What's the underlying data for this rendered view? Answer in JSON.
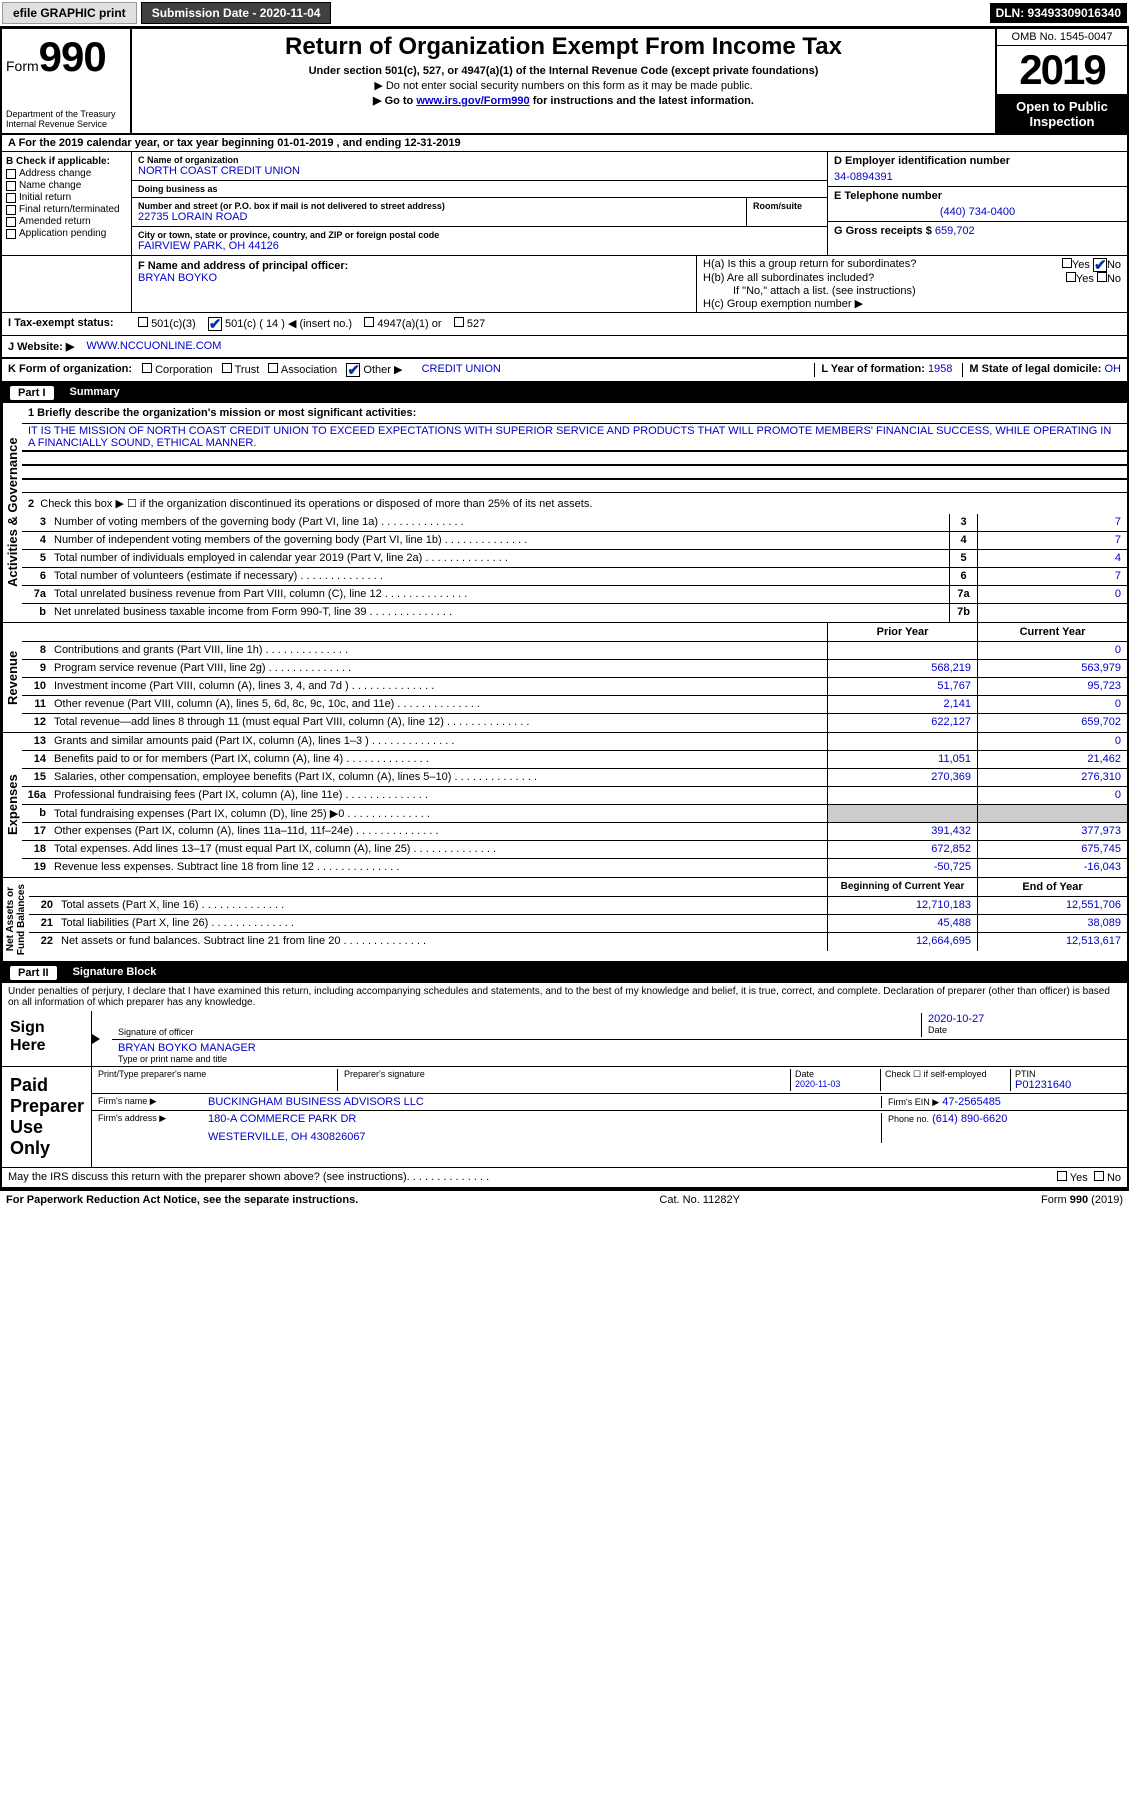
{
  "topbar": {
    "efile": "efile GRAPHIC print",
    "subdate_label": "Submission Date - ",
    "subdate": "2020-11-04",
    "dln": "DLN: 93493309016340"
  },
  "header": {
    "form_word": "Form",
    "form_num": "990",
    "dept1": "Department of the Treasury",
    "dept2": "Internal Revenue Service",
    "title": "Return of Organization Exempt From Income Tax",
    "sub1": "Under section 501(c), 527, or 4947(a)(1) of the Internal Revenue Code (except private foundations)",
    "sub2": "▶ Do not enter social security numbers on this form as it may be made public.",
    "sub3a": "▶ Go to ",
    "sub3_link": "www.irs.gov/Form990",
    "sub3b": " for instructions and the latest information.",
    "omb": "OMB No. 1545-0047",
    "year": "2019",
    "open": "Open to Public Inspection"
  },
  "lineA": "A For the 2019 calendar year, or tax year beginning 01-01-2019   , and ending 12-31-2019",
  "colB": {
    "hdr": "B Check if applicable:",
    "items": [
      "Address change",
      "Name change",
      "Initial return",
      "Final return/terminated",
      "Amended return",
      "Application pending"
    ]
  },
  "colC": {
    "name_lbl": "C Name of organization",
    "name": "NORTH COAST CREDIT UNION",
    "dba_lbl": "Doing business as",
    "dba": "",
    "addr_lbl": "Number and street (or P.O. box if mail is not delivered to street address)",
    "room_lbl": "Room/suite",
    "addr": "22735 LORAIN ROAD",
    "city_lbl": "City or town, state or province, country, and ZIP or foreign postal code",
    "city": "FAIRVIEW PARK, OH  44126",
    "f_lbl": "F  Name and address of principal officer:",
    "f_name": "BRYAN BOYKO"
  },
  "colD": {
    "ein_lbl": "D Employer identification number",
    "ein": "34-0894391",
    "tel_lbl": "E Telephone number",
    "tel": "(440) 734-0400",
    "g_lbl": "G Gross receipts $ ",
    "g_val": "659,702"
  },
  "colH": {
    "a": "H(a)  Is this a group return for subordinates?",
    "b": "H(b)  Are all subordinates included?",
    "note": "If \"No,\" attach a list. (see instructions)",
    "c": "H(c)  Group exemption number ▶",
    "yes": "Yes",
    "no": "No"
  },
  "rowI": {
    "lbl": "I  Tax-exempt status:",
    "opts": [
      "501(c)(3)",
      "501(c) ( 14 ) ◀ (insert no.)",
      "4947(a)(1) or",
      "527"
    ]
  },
  "rowJ": {
    "lbl": "J  Website: ▶",
    "val": "WWW.NCCUONLINE.COM"
  },
  "rowK": {
    "lbl": "K Form of organization:",
    "opts": [
      "Corporation",
      "Trust",
      "Association",
      "Other ▶"
    ],
    "other": "CREDIT UNION",
    "l_lbl": "L Year of formation: ",
    "l_val": "1958",
    "m_lbl": "M State of legal domicile: ",
    "m_val": "OH"
  },
  "part1": {
    "num": "Part I",
    "title": "Summary"
  },
  "summary": {
    "q1_lbl": "1  Briefly describe the organization's mission or most significant activities:",
    "q1_text": "IT IS THE MISSION OF NORTH COAST CREDIT UNION TO EXCEED EXPECTATIONS WITH SUPERIOR SERVICE AND PRODUCTS THAT WILL PROMOTE MEMBERS' FINANCIAL SUCCESS, WHILE OPERATING IN A FINANCIALLY SOUND, ETHICAL MANNER.",
    "q2": "Check this box ▶ ☐  if the organization discontinued its operations or disposed of more than 25% of its net assets.",
    "rows_gov": [
      {
        "n": "3",
        "t": "Number of voting members of the governing body (Part VI, line 1a)",
        "box": "3",
        "v": "7"
      },
      {
        "n": "4",
        "t": "Number of independent voting members of the governing body (Part VI, line 1b)",
        "box": "4",
        "v": "7"
      },
      {
        "n": "5",
        "t": "Total number of individuals employed in calendar year 2019 (Part V, line 2a)",
        "box": "5",
        "v": "4"
      },
      {
        "n": "6",
        "t": "Total number of volunteers (estimate if necessary)",
        "box": "6",
        "v": "7"
      },
      {
        "n": "7a",
        "t": "Total unrelated business revenue from Part VIII, column (C), line 12",
        "box": "7a",
        "v": "0"
      },
      {
        "n": "b",
        "t": "Net unrelated business taxable income from Form 990-T, line 39",
        "box": "7b",
        "v": ""
      }
    ],
    "col_py": "Prior Year",
    "col_cy": "Current Year",
    "rows_rev": [
      {
        "n": "8",
        "t": "Contributions and grants (Part VIII, line 1h)",
        "py": "",
        "cy": "0"
      },
      {
        "n": "9",
        "t": "Program service revenue (Part VIII, line 2g)",
        "py": "568,219",
        "cy": "563,979"
      },
      {
        "n": "10",
        "t": "Investment income (Part VIII, column (A), lines 3, 4, and 7d )",
        "py": "51,767",
        "cy": "95,723"
      },
      {
        "n": "11",
        "t": "Other revenue (Part VIII, column (A), lines 5, 6d, 8c, 9c, 10c, and 11e)",
        "py": "2,141",
        "cy": "0"
      },
      {
        "n": "12",
        "t": "Total revenue—add lines 8 through 11 (must equal Part VIII, column (A), line 12)",
        "py": "622,127",
        "cy": "659,702"
      }
    ],
    "rows_exp": [
      {
        "n": "13",
        "t": "Grants and similar amounts paid (Part IX, column (A), lines 1–3 )",
        "py": "",
        "cy": "0"
      },
      {
        "n": "14",
        "t": "Benefits paid to or for members (Part IX, column (A), line 4)",
        "py": "11,051",
        "cy": "21,462"
      },
      {
        "n": "15",
        "t": "Salaries, other compensation, employee benefits (Part IX, column (A), lines 5–10)",
        "py": "270,369",
        "cy": "276,310"
      },
      {
        "n": "16a",
        "t": "Professional fundraising fees (Part IX, column (A), line 11e)",
        "py": "",
        "cy": "0"
      },
      {
        "n": "b",
        "t": "Total fundraising expenses (Part IX, column (D), line 25) ▶0",
        "py": "SHADE",
        "cy": "SHADE"
      },
      {
        "n": "17",
        "t": "Other expenses (Part IX, column (A), lines 11a–11d, 11f–24e)",
        "py": "391,432",
        "cy": "377,973"
      },
      {
        "n": "18",
        "t": "Total expenses. Add lines 13–17 (must equal Part IX, column (A), line 25)",
        "py": "672,852",
        "cy": "675,745"
      },
      {
        "n": "19",
        "t": "Revenue less expenses. Subtract line 18 from line 12",
        "py": "-50,725",
        "cy": "-16,043"
      }
    ],
    "col_bcy": "Beginning of Current Year",
    "col_ey": "End of Year",
    "rows_net": [
      {
        "n": "20",
        "t": "Total assets (Part X, line 16)",
        "py": "12,710,183",
        "cy": "12,551,706"
      },
      {
        "n": "21",
        "t": "Total liabilities (Part X, line 26)",
        "py": "45,488",
        "cy": "38,089"
      },
      {
        "n": "22",
        "t": "Net assets or fund balances. Subtract line 21 from line 20",
        "py": "12,664,695",
        "cy": "12,513,617"
      }
    ]
  },
  "vtabs": {
    "gov": "Activities & Governance",
    "rev": "Revenue",
    "exp": "Expenses",
    "net": "Net Assets or\nFund Balances"
  },
  "part2": {
    "num": "Part II",
    "title": "Signature Block"
  },
  "sig": {
    "decl": "Under penalties of perjury, I declare that I have examined this return, including accompanying schedules and statements, and to the best of my knowledge and belief, it is true, correct, and complete. Declaration of preparer (other than officer) is based on all information of which preparer has any knowledge.",
    "sign_here": "Sign Here",
    "sig_officer": "Signature of officer",
    "date": "Date",
    "date_val": "2020-10-27",
    "name_title": "BRYAN BOYKO MANAGER",
    "type_name": "Type or print name and title",
    "paid": "Paid Preparer Use Only",
    "prep_name_lbl": "Print/Type preparer's name",
    "prep_sig_lbl": "Preparer's signature",
    "prep_date": "2020-11-03",
    "check_self": "Check ☐ if self-employed",
    "ptin_lbl": "PTIN",
    "ptin": "P01231640",
    "firm_name_lbl": "Firm's name   ▶",
    "firm_name": "BUCKINGHAM BUSINESS ADVISORS LLC",
    "firm_ein_lbl": "Firm's EIN ▶",
    "firm_ein": "47-2565485",
    "firm_addr_lbl": "Firm's address ▶",
    "firm_addr1": "180-A COMMERCE PARK DR",
    "firm_addr2": "WESTERVILLE, OH  430826067",
    "phone_lbl": "Phone no.",
    "phone": "(614) 890-6620",
    "discuss": "May the IRS discuss this return with the preparer shown above? (see instructions)"
  },
  "footer": {
    "left": "For Paperwork Reduction Act Notice, see the separate instructions.",
    "mid": "Cat. No. 11282Y",
    "right": "Form 990 (2019)"
  },
  "colors": {
    "link": "#0000cc",
    "shade": "#cccccc",
    "header_bg": "#000000"
  }
}
